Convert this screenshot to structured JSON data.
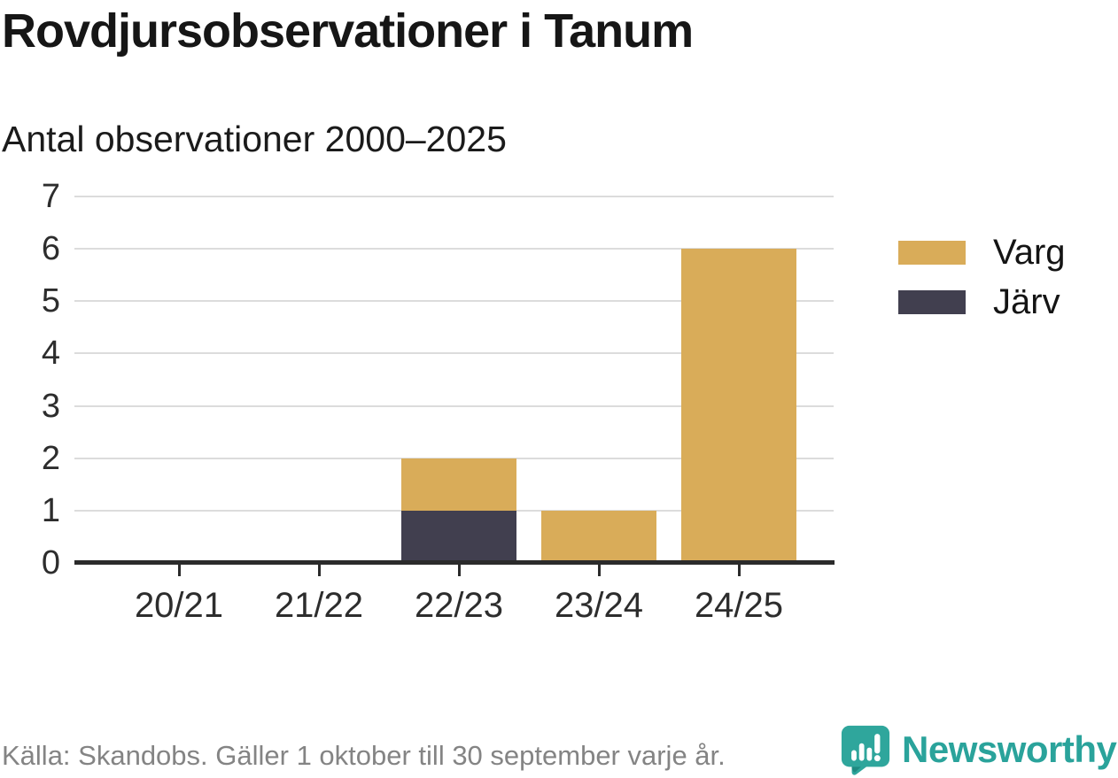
{
  "title": "Rovdjursobservationer i Tanum",
  "subtitle": "Antal observationer 2000–2025",
  "footer": {
    "source": "Källa: Skandobs. Gäller 1 oktober till 30 september varje år."
  },
  "branding": {
    "name": "Newsworthy",
    "icon": "newsworthy-speech-bubble-chart-icon",
    "color": "#2aa39b"
  },
  "colors": {
    "varg": "#d9ac59",
    "jarv": "#413f4f",
    "axis": "#2b2b2b",
    "grid": "#dcdcdc",
    "footer_text": "#848484"
  },
  "chart_data": {
    "type": "bar",
    "stacked": true,
    "title": "Rovdjursobservationer i Tanum",
    "subtitle": "Antal observationer 2000–2025",
    "categories": [
      "20/21",
      "21/22",
      "22/23",
      "23/24",
      "24/25"
    ],
    "series": [
      {
        "name": "Varg",
        "color": "#d9ac59",
        "values": [
          0,
          0,
          1,
          1,
          6
        ]
      },
      {
        "name": "Järv",
        "color": "#413f4f",
        "values": [
          0,
          0,
          1,
          0,
          0
        ]
      }
    ],
    "stack_bottom_to_top": [
      "Järv",
      "Varg"
    ],
    "totals": [
      0,
      0,
      2,
      1,
      6
    ],
    "ylim": [
      0,
      7
    ],
    "yticks": [
      0,
      1,
      2,
      3,
      4,
      5,
      6,
      7
    ],
    "xlabel": "",
    "ylabel": "",
    "grid": true,
    "legend_position": "right",
    "source": "Källa: Skandobs. Gäller 1 oktober till 30 september varje år."
  }
}
